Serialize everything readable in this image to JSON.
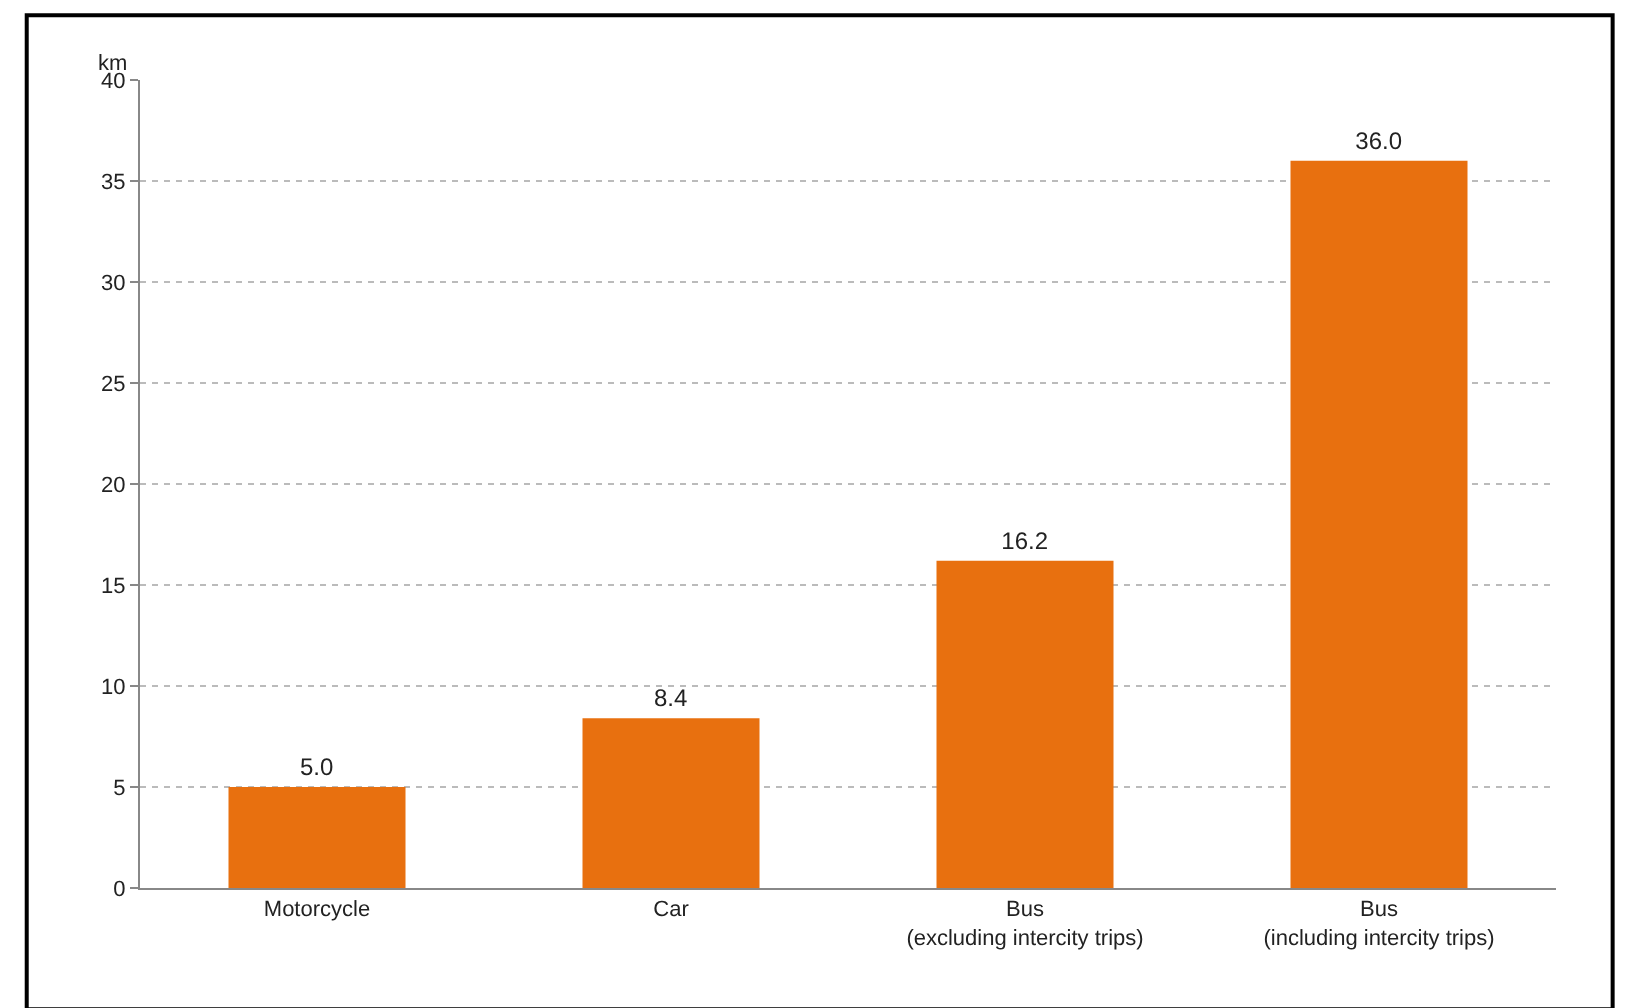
{
  "chart_data": {
    "type": "bar",
    "ylabel": "km",
    "categories": [
      "Motorcycle",
      "Car",
      "Bus\n(excluding intercity trips)",
      "Bus\n(including intercity trips)"
    ],
    "values": [
      5.0,
      8.4,
      16.2,
      36.0
    ],
    "value_labels": [
      "5.0",
      "8.4",
      "16.2",
      "36.0"
    ],
    "color": "#e8700f",
    "ylim": [
      0,
      40
    ],
    "yticks": [
      0,
      5,
      10,
      15,
      20,
      25,
      30,
      35,
      40
    ],
    "grid": "y",
    "legend": false
  }
}
